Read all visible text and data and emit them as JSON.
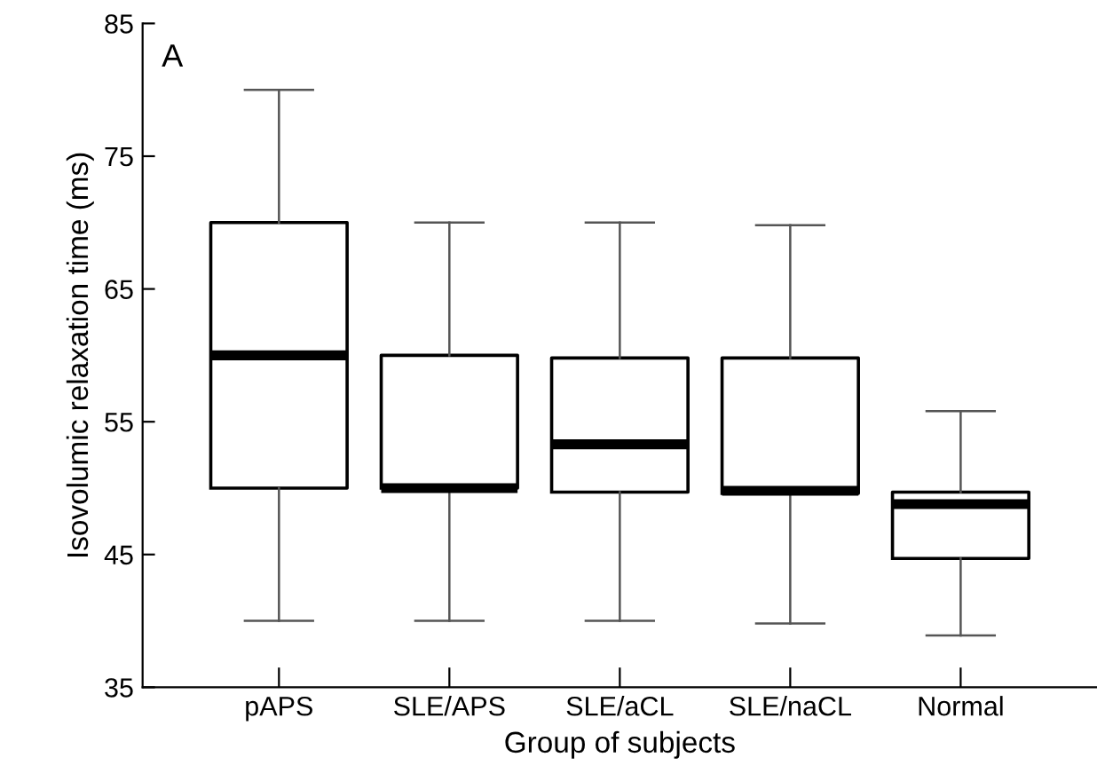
{
  "chart_data": {
    "type": "box",
    "xlabel": "Group of subjects",
    "ylabel": "Isovolumic relaxation time (ms)",
    "annotations": [
      "A"
    ],
    "categories": [
      "pAPS",
      "SLE/APS",
      "SLE/aCL",
      "SLE/naCL",
      "Normal"
    ],
    "boxes": [
      {
        "low": 40,
        "q1": 50,
        "median": 60,
        "q3": 70,
        "high": 80
      },
      {
        "low": 40,
        "q1": 50,
        "median": 50,
        "q3": 60,
        "high": 70
      },
      {
        "low": 40,
        "q1": 49.7,
        "median": 53.3,
        "q3": 59.8,
        "high": 70
      },
      {
        "low": 39.8,
        "q1": 49.6,
        "median": 49.8,
        "q3": 59.8,
        "high": 69.8
      },
      {
        "low": 38.9,
        "q1": 44.7,
        "median": 48.8,
        "q3": 49.7,
        "high": 55.8
      }
    ],
    "ylim": [
      35,
      85
    ],
    "yticks": [
      35,
      45,
      55,
      65,
      75,
      85
    ],
    "grid": false
  }
}
